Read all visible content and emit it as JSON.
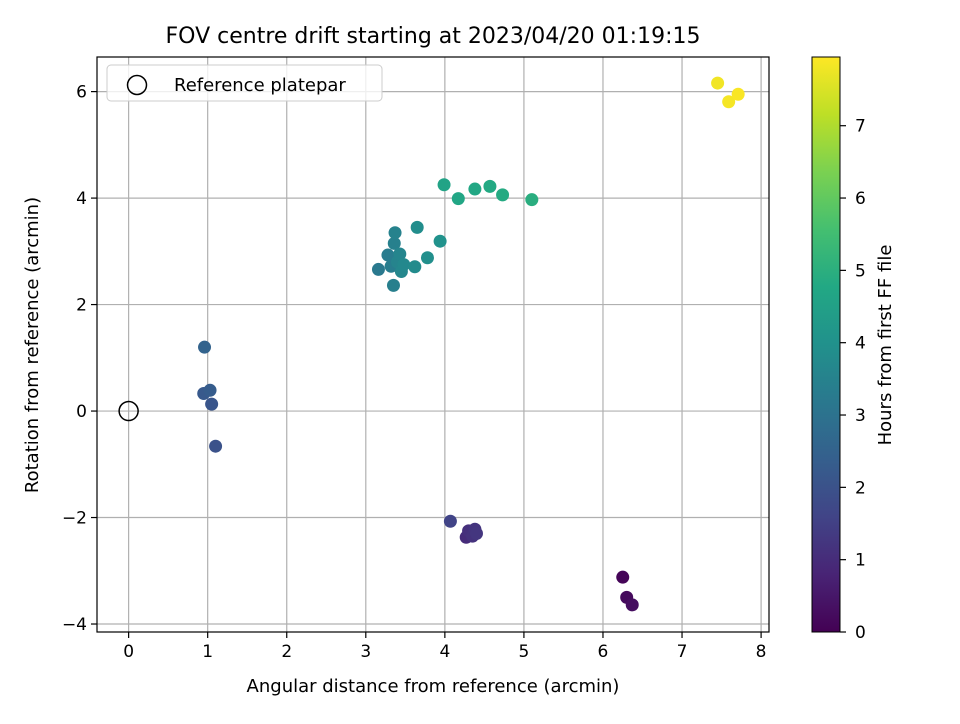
{
  "chart_data": {
    "type": "scatter",
    "title": "FOV centre drift starting at 2023/04/20 01:19:15",
    "xlabel": "Angular distance from reference (arcmin)",
    "ylabel": "Rotation from reference (arcmin)",
    "xlim": [
      -0.4,
      8.1
    ],
    "ylim": [
      -4.15,
      6.65
    ],
    "xticks": [
      0,
      1,
      2,
      3,
      4,
      5,
      6,
      7,
      8
    ],
    "yticks": [
      -4,
      -2,
      0,
      2,
      4,
      6
    ],
    "xtick_labels": [
      "0",
      "1",
      "2",
      "3",
      "4",
      "5",
      "6",
      "7",
      "8"
    ],
    "ytick_labels": [
      "−4",
      "−2",
      "0",
      "2",
      "4",
      "6"
    ],
    "grid": true,
    "legend": {
      "position": "top-left",
      "entries": [
        "Reference platepar"
      ]
    },
    "reference_point": {
      "x": 0,
      "y": 0,
      "label": "Reference platepar"
    },
    "colorbar": {
      "label": "Hours from first FF file",
      "range": [
        0,
        7.95
      ],
      "ticks": [
        0,
        1,
        2,
        3,
        4,
        5,
        6,
        7
      ],
      "tick_labels": [
        "0",
        "1",
        "2",
        "3",
        "4",
        "5",
        "6",
        "7"
      ],
      "colormap": "viridis"
    },
    "points": [
      {
        "x": 6.25,
        "y": -3.12,
        "c": 0.1
      },
      {
        "x": 6.3,
        "y": -3.5,
        "c": 0.2
      },
      {
        "x": 6.37,
        "y": -3.64,
        "c": 0.3
      },
      {
        "x": 4.27,
        "y": -2.37,
        "c": 1.0
      },
      {
        "x": 4.3,
        "y": -2.25,
        "c": 1.1
      },
      {
        "x": 4.35,
        "y": -2.35,
        "c": 1.15
      },
      {
        "x": 4.38,
        "y": -2.22,
        "c": 1.2
      },
      {
        "x": 4.4,
        "y": -2.3,
        "c": 1.25
      },
      {
        "x": 4.07,
        "y": -2.07,
        "c": 1.6
      },
      {
        "x": 1.1,
        "y": -0.66,
        "c": 2.0
      },
      {
        "x": 1.05,
        "y": 0.13,
        "c": 2.1
      },
      {
        "x": 0.95,
        "y": 0.33,
        "c": 2.2
      },
      {
        "x": 1.03,
        "y": 0.39,
        "c": 2.3
      },
      {
        "x": 0.96,
        "y": 1.2,
        "c": 2.5
      },
      {
        "x": 3.16,
        "y": 2.66,
        "c": 3.2
      },
      {
        "x": 3.28,
        "y": 2.93,
        "c": 3.3
      },
      {
        "x": 3.32,
        "y": 2.72,
        "c": 3.35
      },
      {
        "x": 3.35,
        "y": 2.36,
        "c": 3.4
      },
      {
        "x": 3.36,
        "y": 3.15,
        "c": 3.45
      },
      {
        "x": 3.37,
        "y": 3.35,
        "c": 3.5
      },
      {
        "x": 3.4,
        "y": 2.8,
        "c": 3.55
      },
      {
        "x": 3.43,
        "y": 2.95,
        "c": 3.6
      },
      {
        "x": 3.45,
        "y": 2.62,
        "c": 3.65
      },
      {
        "x": 3.48,
        "y": 2.75,
        "c": 3.7
      },
      {
        "x": 3.62,
        "y": 2.71,
        "c": 3.8
      },
      {
        "x": 3.65,
        "y": 3.45,
        "c": 3.85
      },
      {
        "x": 3.78,
        "y": 2.88,
        "c": 3.9
      },
      {
        "x": 3.94,
        "y": 3.19,
        "c": 4.0
      },
      {
        "x": 3.99,
        "y": 4.25,
        "c": 4.6
      },
      {
        "x": 4.17,
        "y": 3.99,
        "c": 4.7
      },
      {
        "x": 4.38,
        "y": 4.17,
        "c": 4.75
      },
      {
        "x": 4.57,
        "y": 4.22,
        "c": 4.8
      },
      {
        "x": 4.73,
        "y": 4.06,
        "c": 4.85
      },
      {
        "x": 5.1,
        "y": 3.97,
        "c": 4.95
      },
      {
        "x": 7.45,
        "y": 6.16,
        "c": 7.8
      },
      {
        "x": 7.59,
        "y": 5.81,
        "c": 7.85
      },
      {
        "x": 7.71,
        "y": 5.95,
        "c": 7.9
      }
    ]
  }
}
